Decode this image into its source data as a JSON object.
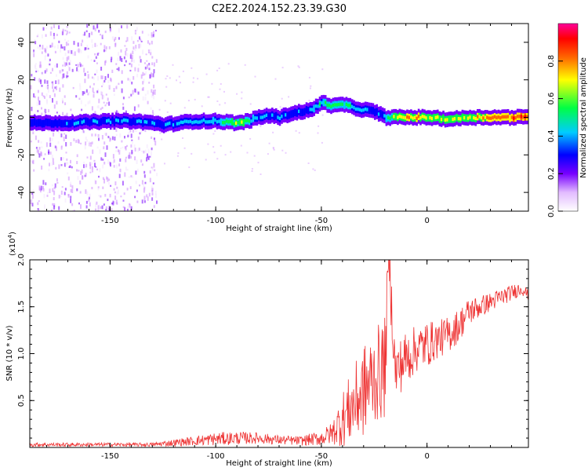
{
  "title": "C2E2.2024.152.23.39.G30",
  "chart_data": [
    {
      "type": "heatmap",
      "xlabel": "Height of straight line (km)",
      "ylabel": "Frequency (Hz)",
      "xlim": [
        -188,
        48
      ],
      "ylim": [
        -50,
        50
      ],
      "x_ticks": [
        -150,
        -100,
        -50,
        0
      ],
      "y_ticks": [
        -40,
        -20,
        0,
        20,
        40
      ],
      "grid": false,
      "colorbar": {
        "label": "Normalized spectral amplitude",
        "range": [
          0,
          1
        ],
        "ticks": [
          0.0,
          0.2,
          0.4,
          0.6,
          0.8
        ],
        "colors": [
          "#ffffff",
          "#cc88ff",
          "#7700ff",
          "#0000ff",
          "#00e5ff",
          "#00ff00",
          "#ffff00",
          "#ff5500",
          "#ff0000",
          "#ff0080"
        ]
      },
      "ridge": {
        "x": [
          -188,
          -170,
          -150,
          -140,
          -130,
          -125,
          -110,
          -100,
          -90,
          -85,
          -80,
          -75,
          -70,
          -65,
          -60,
          -55,
          -50,
          -45,
          -40,
          -35,
          -30,
          -25,
          -20,
          -15,
          -10,
          0,
          10,
          20,
          30,
          48
        ],
        "y": [
          -3,
          -3,
          -2,
          -2,
          -3,
          -4,
          -2,
          -2,
          -3,
          -2,
          0,
          1,
          0,
          2,
          3,
          4,
          8,
          6,
          7,
          5,
          4,
          3,
          0,
          0,
          0,
          0,
          -1,
          0,
          0,
          0
        ],
        "amplitude": [
          0.35,
          0.4,
          0.45,
          0.45,
          0.4,
          0.4,
          0.45,
          0.5,
          0.7,
          0.6,
          0.45,
          0.45,
          0.45,
          0.4,
          0.4,
          0.45,
          0.55,
          0.65,
          0.6,
          0.45,
          0.4,
          0.4,
          0.5,
          0.75,
          0.8,
          0.75,
          0.7,
          0.75,
          0.85,
          0.9
        ]
      },
      "noise_region": [
        -188,
        -128
      ]
    },
    {
      "type": "line",
      "xlabel": "Height of straight line (km)",
      "ylabel": "SNR (10 * v/v)",
      "y_scale_label": "(x10",
      "y_scale_exponent": "4",
      "y_scale_suffix": ")",
      "xlim": [
        -188,
        48
      ],
      "ylim": [
        0,
        2.0
      ],
      "x_ticks": [
        -150,
        -100,
        -50,
        0
      ],
      "y_ticks": [
        0.5,
        1.0,
        1.5,
        2.0
      ],
      "y_tick_labels": [
        "0.5",
        "1.0",
        "1.5",
        "2.0"
      ],
      "grid": false,
      "series": [
        {
          "color": "#ee3333",
          "x": [
            -188,
            -170,
            -150,
            -130,
            -125,
            -110,
            -100,
            -90,
            -80,
            -70,
            -60,
            -50,
            -45,
            -40,
            -35,
            -30,
            -25,
            -20,
            -18,
            -15,
            -10,
            -5,
            0,
            5,
            10,
            15,
            20,
            25,
            30,
            35,
            40,
            45,
            48
          ],
          "y": [
            0.03,
            0.03,
            0.03,
            0.03,
            0.04,
            0.07,
            0.09,
            0.1,
            0.1,
            0.08,
            0.07,
            0.1,
            0.15,
            0.3,
            0.45,
            0.6,
            0.75,
            0.85,
            2.0,
            0.8,
            0.95,
            1.05,
            1.1,
            1.15,
            1.2,
            1.3,
            1.45,
            1.5,
            1.55,
            1.6,
            1.65,
            1.7,
            1.62
          ],
          "noise": [
            0.02,
            0.02,
            0.02,
            0.02,
            0.03,
            0.05,
            0.07,
            0.07,
            0.06,
            0.05,
            0.05,
            0.08,
            0.12,
            0.3,
            0.4,
            0.5,
            0.5,
            0.55,
            0.3,
            0.3,
            0.3,
            0.25,
            0.25,
            0.2,
            0.2,
            0.18,
            0.15,
            0.12,
            0.1,
            0.1,
            0.08,
            0.08,
            0.05
          ]
        }
      ]
    }
  ]
}
